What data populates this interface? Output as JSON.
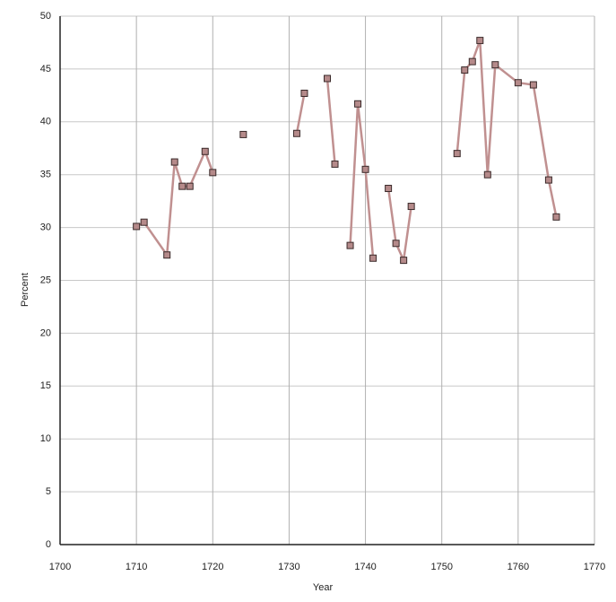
{
  "chart_data": {
    "type": "line",
    "x_label": "Year",
    "y_label": "Percent",
    "x": [
      1710,
      1711,
      1714,
      1715,
      1716,
      1717,
      1719,
      1720,
      1722,
      1724,
      1727,
      1731,
      1732,
      1733,
      1735,
      1736,
      1737,
      1738,
      1739,
      1740,
      1741,
      1742,
      1743,
      1744,
      1745,
      1746,
      1749,
      1752,
      1753,
      1754,
      1755,
      1756,
      1757,
      1760,
      1762,
      1764,
      1765
    ],
    "series": [
      {
        "color": "#c09090",
        "values": [
          30.1,
          30.5,
          27.4,
          36.2,
          33.9,
          33.9,
          37.2,
          35.2,
          null,
          38.8,
          null,
          38.9,
          42.7,
          null,
          44.1,
          36.0,
          null,
          28.3,
          41.7,
          35.5,
          27.1,
          null,
          33.7,
          28.5,
          26.9,
          32.0,
          null,
          37.0,
          44.9,
          45.7,
          47.7,
          35.0,
          45.4,
          43.7,
          43.5,
          34.5,
          31.0
        ]
      }
    ],
    "xlim": [
      1700,
      1770
    ],
    "xticks": [
      1700,
      1710,
      1720,
      1730,
      1740,
      1750,
      1760,
      1770
    ],
    "ylim": [
      0,
      50
    ],
    "yticks": [
      0,
      5,
      10,
      15,
      20,
      25,
      30,
      35,
      40,
      45,
      50
    ],
    "grid": true
  }
}
